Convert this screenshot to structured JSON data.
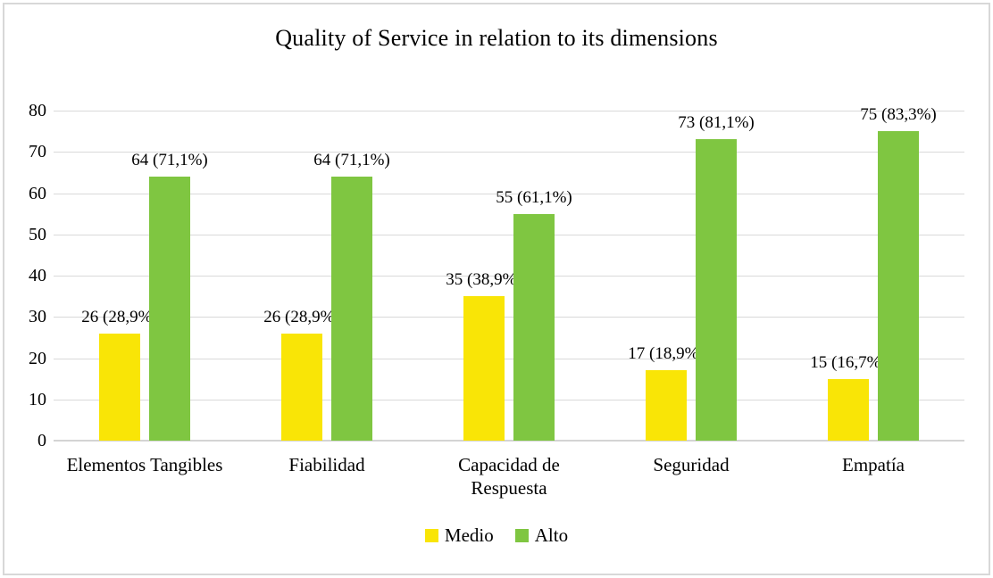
{
  "chart_data": {
    "type": "bar",
    "title": "Quality of Service in relation to its dimensions",
    "categories": [
      "Elementos Tangibles",
      "Fiabilidad",
      "Capacidad de Respuesta",
      "Seguridad",
      "Empatía"
    ],
    "series": [
      {
        "name": "Medio",
        "color": "#f9e506",
        "values": [
          26,
          26,
          35,
          17,
          15
        ],
        "labels": [
          "26 (28,9%)",
          "26 (28,9%)",
          "35 (38,9%)",
          "17 (18,9%)",
          "15 (16,7%)"
        ]
      },
      {
        "name": "Alto",
        "color": "#7fc641",
        "values": [
          64,
          64,
          55,
          73,
          75
        ],
        "labels": [
          "64 (71,1%)",
          "64 (71,1%)",
          "55 (61,1%)",
          "73 (81,1%)",
          "75 (83,3%)"
        ]
      }
    ],
    "ylim": [
      0,
      80
    ],
    "ytick_step": 10,
    "yticks": [
      0,
      10,
      20,
      30,
      40,
      50,
      60,
      70,
      80
    ],
    "grid": true,
    "legend_position": "bottom"
  },
  "colors": {
    "background": "#ffffff",
    "frame_border": "#d8d8d8",
    "gridline": "#d9d9d9",
    "axis_line": "#d4d4d4",
    "text": "#000000"
  }
}
